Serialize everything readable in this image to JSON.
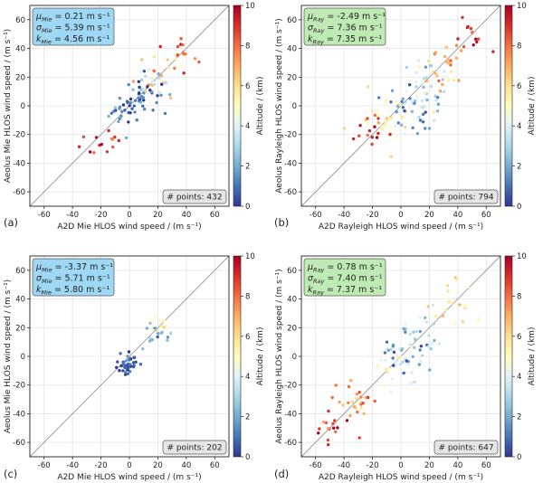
{
  "colors": {
    "mie_box": "#9fd8f5",
    "ray_box": "#bfeab3",
    "diag_line": "#9a9a9a",
    "grid": "#e4e4e4"
  },
  "colorbar": {
    "label": "Altitude / (km)",
    "ticks": [
      "0",
      "2",
      "4",
      "6",
      "8",
      "10"
    ],
    "range": [
      0,
      10
    ],
    "colormap": "RdYlBu_r"
  },
  "chart_data": [
    {
      "type": "scatter",
      "panel_label": "(a)",
      "xlabel": "A2D Mie HLOS wind speed / (m s⁻¹)",
      "ylabel": "Aeolus Mie HLOS wind speed / (m s⁻¹)",
      "xlim": [
        -70,
        70
      ],
      "ylim": [
        -70,
        70
      ],
      "xticks": [
        "-60",
        "-40",
        "-20",
        "0",
        "20",
        "40",
        "60"
      ],
      "yticks": [
        "-60",
        "-40",
        "-20",
        "0",
        "20",
        "40",
        "60"
      ],
      "grid": true,
      "stats": [
        {
          "sym": "μ",
          "sub": "Mie",
          "value": " = 0.21 m s⁻¹"
        },
        {
          "sym": "σ",
          "sub": "Mie",
          "value": " = 5.39 m s⁻¹"
        },
        {
          "sym": "k",
          "sub": "Mie",
          "value": " = 4.56 m s⁻¹"
        }
      ],
      "stats_box": "mie",
      "n_points": "# points: 432",
      "clusters": [
        {
          "x": 22,
          "y": 20,
          "sx": 9,
          "sy": 9,
          "alt": 6.5,
          "n": 20
        },
        {
          "x": 38,
          "y": 40,
          "sx": 6,
          "sy": 6,
          "alt": 8.2,
          "n": 13
        },
        {
          "x": 8,
          "y": 6,
          "sx": 7,
          "sy": 7,
          "alt": 1.2,
          "n": 35
        },
        {
          "x": -5,
          "y": -4,
          "sx": 6,
          "sy": 6,
          "alt": 0.8,
          "n": 22
        },
        {
          "x": 15,
          "y": 14,
          "sx": 6,
          "sy": 6,
          "alt": 3.5,
          "n": 15
        },
        {
          "x": -20,
          "y": -22,
          "sx": 6,
          "sy": 6,
          "alt": 9.0,
          "n": 14
        }
      ]
    },
    {
      "type": "scatter",
      "panel_label": "(b)",
      "xlabel": "A2D Rayleigh HLOS wind speed / (m s⁻¹)",
      "ylabel": "Aeolus Rayleigh HLOS wind speed / (m s⁻¹)",
      "xlim": [
        -70,
        70
      ],
      "ylim": [
        -70,
        70
      ],
      "xticks": [
        "-60",
        "-40",
        "-20",
        "0",
        "20",
        "40",
        "60"
      ],
      "yticks": [
        "-60",
        "-40",
        "-20",
        "0",
        "20",
        "40",
        "60"
      ],
      "grid": true,
      "stats": [
        {
          "sym": "μ",
          "sub": "Ray",
          "value": " = -2.49 m s⁻¹"
        },
        {
          "sym": "σ",
          "sub": "Ray",
          "value": " = 7.36 m s⁻¹"
        },
        {
          "sym": "k",
          "sub": "Ray",
          "value": " = 7.35 m s⁻¹"
        }
      ],
      "stats_box": "ray",
      "n_points": "# points: 794",
      "clusters": [
        {
          "x": 15,
          "y": 12,
          "sx": 10,
          "sy": 10,
          "alt": 3.5,
          "n": 45
        },
        {
          "x": -10,
          "y": -12,
          "sx": 9,
          "sy": 9,
          "alt": 5.5,
          "n": 35
        },
        {
          "x": 30,
          "y": 27,
          "sx": 8,
          "sy": 8,
          "alt": 7.0,
          "n": 25
        },
        {
          "x": 50,
          "y": 48,
          "sx": 6,
          "sy": 6,
          "alt": 8.5,
          "n": 14
        },
        {
          "x": 5,
          "y": 0,
          "sx": 10,
          "sy": 10,
          "alt": 1.5,
          "n": 25
        },
        {
          "x": -20,
          "y": -18,
          "sx": 6,
          "sy": 6,
          "alt": 9.0,
          "n": 14
        }
      ]
    },
    {
      "type": "scatter",
      "panel_label": "(c)",
      "xlabel": "A2D Mie HLOS wind speed / (m s⁻¹)",
      "ylabel": "Aeolus Mie HLOS wind speed / (m s⁻¹)",
      "xlim": [
        -70,
        70
      ],
      "ylim": [
        -70,
        70
      ],
      "xticks": [
        "-60",
        "-40",
        "-20",
        "0",
        "20",
        "40",
        "60"
      ],
      "yticks": [
        "-60",
        "-40",
        "-20",
        "0",
        "20",
        "40",
        "60"
      ],
      "grid": true,
      "stats": [
        {
          "sym": "μ",
          "sub": "Mie",
          "value": " = -3.37 m s⁻¹"
        },
        {
          "sym": "σ",
          "sub": "Mie",
          "value": " = 5.71 m s⁻¹"
        },
        {
          "sym": "k",
          "sub": "Mie",
          "value": " = 5.80 m s⁻¹"
        }
      ],
      "stats_box": "mie",
      "n_points": "# points: 202",
      "clusters": [
        {
          "x": 0,
          "y": -5,
          "sx": 5,
          "sy": 4,
          "alt": 0.6,
          "n": 45
        },
        {
          "x": 18,
          "y": 15,
          "sx": 5,
          "sy": 5,
          "alt": 2.0,
          "n": 15
        },
        {
          "x": 20,
          "y": 22,
          "sx": 4,
          "sy": 4,
          "alt": 5.0,
          "n": 10
        }
      ]
    },
    {
      "type": "scatter",
      "panel_label": "(d)",
      "xlabel": "A2D Rayleigh HLOS wind speed / (m s⁻¹)",
      "ylabel": "Aeolus Rayleigh HLOS wind speed / (m s⁻¹)",
      "xlim": [
        -70,
        70
      ],
      "ylim": [
        -70,
        70
      ],
      "xticks": [
        "-60",
        "-40",
        "-20",
        "0",
        "20",
        "40",
        "60"
      ],
      "yticks": [
        "-60",
        "-40",
        "-20",
        "0",
        "20",
        "40",
        "60"
      ],
      "grid": true,
      "stats": [
        {
          "sym": "μ",
          "sub": "Ray",
          "value": " = 0.78 m s⁻¹"
        },
        {
          "sym": "σ",
          "sub": "Ray",
          "value": " = 7.40 m s⁻¹"
        },
        {
          "sym": "k",
          "sub": "Ray",
          "value": " = 7.37 m s⁻¹"
        }
      ],
      "stats_box": "ray",
      "n_points": "# points: 647",
      "clusters": [
        {
          "x": -5,
          "y": -6,
          "sx": 10,
          "sy": 10,
          "alt": 4.0,
          "n": 40
        },
        {
          "x": 15,
          "y": 15,
          "sx": 8,
          "sy": 8,
          "alt": 3.0,
          "n": 25
        },
        {
          "x": -30,
          "y": -30,
          "sx": 8,
          "sy": 8,
          "alt": 7.5,
          "n": 25
        },
        {
          "x": -50,
          "y": -50,
          "sx": 6,
          "sy": 6,
          "alt": 9.0,
          "n": 15
        },
        {
          "x": 35,
          "y": 35,
          "sx": 8,
          "sy": 8,
          "alt": 6.0,
          "n": 18
        },
        {
          "x": 0,
          "y": 2,
          "sx": 8,
          "sy": 8,
          "alt": 1.5,
          "n": 20
        }
      ]
    }
  ]
}
